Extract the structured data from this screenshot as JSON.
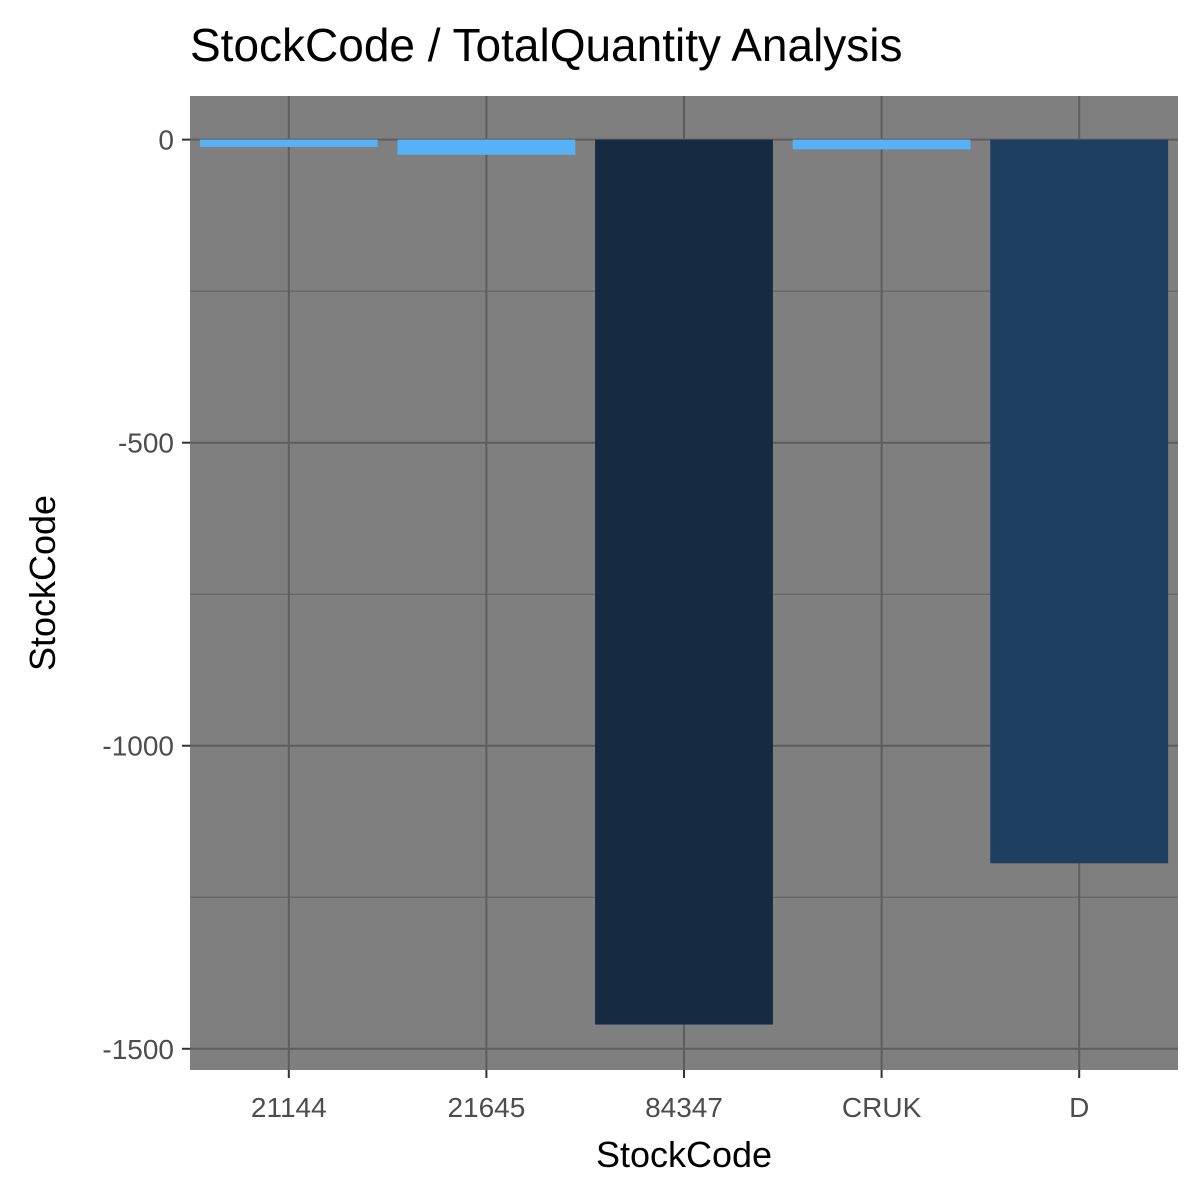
{
  "chart_data": {
    "type": "bar",
    "title": "StockCode / TotalQuantity Analysis",
    "xlabel": "StockCode",
    "ylabel": "StockCode",
    "categories": [
      "21144",
      "21645",
      "84347",
      "CRUK",
      "D"
    ],
    "values": [
      -12,
      -25,
      -1460,
      -16,
      -1194
    ],
    "bar_colors": [
      "#56B1F7",
      "#56B1F7",
      "#162A42",
      "#56B1F7",
      "#1F3F60"
    ],
    "ylim": [
      -1535,
      72
    ],
    "y_ticks": [
      0,
      -500,
      -1000,
      -1500
    ],
    "y_tick_labels": [
      "0",
      "-500",
      "-1000",
      "-1500"
    ],
    "y_minor_ticks": [
      -250,
      -750,
      -1250
    ],
    "panel_background": "#7F7F7F",
    "grid_color": "#5e5e5e",
    "grid": true,
    "legend": "none"
  }
}
